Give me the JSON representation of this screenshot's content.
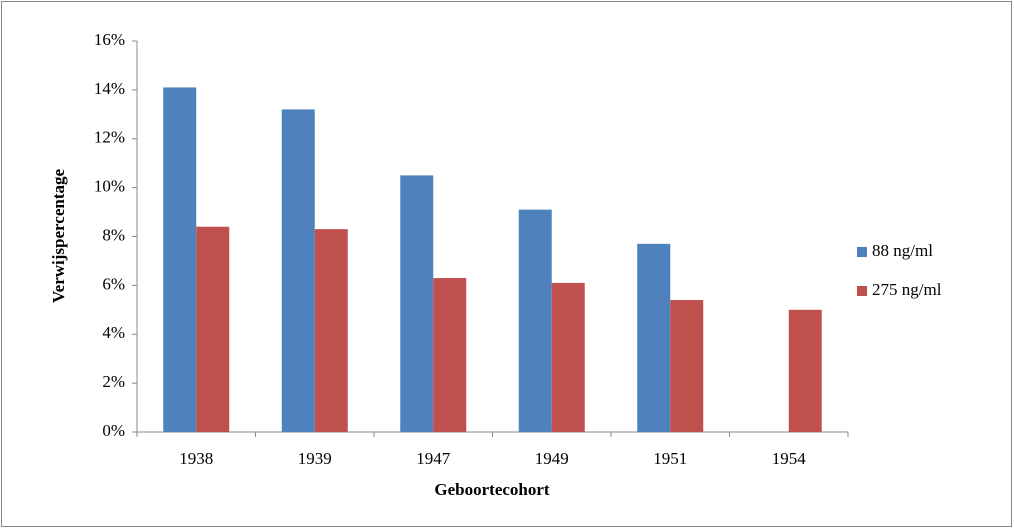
{
  "chart_data": {
    "type": "bar",
    "x_label": "Geboortecohort",
    "y_label": "Verwijspercentage",
    "categories": [
      "1938",
      "1939",
      "1947",
      "1949",
      "1951",
      "1954"
    ],
    "series": [
      {
        "name": "88 ng/ml",
        "color": "#4f81bd",
        "values": [
          14.1,
          13.2,
          10.5,
          9.1,
          7.7,
          null
        ]
      },
      {
        "name": "275 ng/ml",
        "color": "#c0504d",
        "values": [
          8.4,
          8.3,
          6.3,
          6.1,
          5.4,
          5.0
        ]
      }
    ],
    "ylim": [
      0,
      16
    ],
    "yticks": [
      {
        "value": 0,
        "label": "0%"
      },
      {
        "value": 2,
        "label": "2%"
      },
      {
        "value": 4,
        "label": "4%"
      },
      {
        "value": 6,
        "label": "6%"
      },
      {
        "value": 8,
        "label": "8%"
      },
      {
        "value": 10,
        "label": "10%"
      },
      {
        "value": 12,
        "label": "12%"
      },
      {
        "value": 14,
        "label": "14%"
      },
      {
        "value": 16,
        "label": "16%"
      }
    ],
    "grid": false,
    "legend": "right"
  }
}
